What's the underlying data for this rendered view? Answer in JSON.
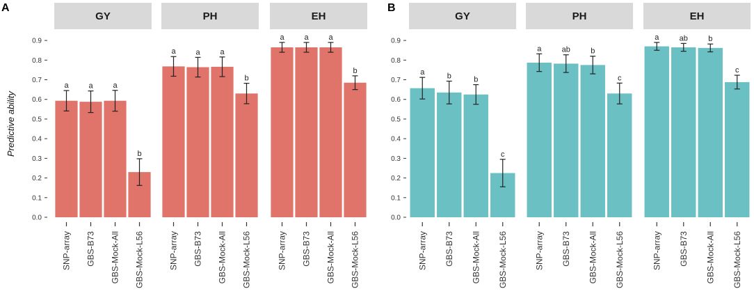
{
  "figure": {
    "ylabel": "Predictive ability"
  },
  "chart_data": [
    {
      "type": "bar",
      "panel": "A",
      "color": "#E0746A",
      "ylabel": "Predictive ability",
      "ylim": [
        0,
        0.95
      ],
      "yticks": [
        "0.0",
        "0.1",
        "0.2",
        "0.3",
        "0.4",
        "0.5",
        "0.6",
        "0.7",
        "0.8",
        "0.9"
      ],
      "categories": [
        "SNP-array",
        "GBS-B73",
        "GBS-Mock-All",
        "GBS-Mock-L56"
      ],
      "facets": [
        {
          "name": "GY",
          "values": [
            0.593,
            0.588,
            0.593,
            0.23
          ],
          "errors": [
            0.052,
            0.055,
            0.053,
            0.068
          ],
          "letters": [
            "a",
            "a",
            "a",
            "b"
          ]
        },
        {
          "name": "PH",
          "values": [
            0.768,
            0.764,
            0.766,
            0.63
          ],
          "errors": [
            0.05,
            0.05,
            0.05,
            0.052
          ],
          "letters": [
            "a",
            "a",
            "a",
            "b"
          ]
        },
        {
          "name": "EH",
          "values": [
            0.865,
            0.865,
            0.865,
            0.685
          ],
          "errors": [
            0.025,
            0.025,
            0.025,
            0.035
          ],
          "letters": [
            "a",
            "a",
            "a",
            "b"
          ]
        }
      ]
    },
    {
      "type": "bar",
      "panel": "B",
      "color": "#6BC0C4",
      "ylabel": "",
      "ylim": [
        0,
        0.95
      ],
      "yticks": [
        "0.0",
        "0.1",
        "0.2",
        "0.3",
        "0.4",
        "0.5",
        "0.6",
        "0.7",
        "0.8",
        "0.9"
      ],
      "categories": [
        "SNP-array",
        "GBS-B73",
        "GBS-Mock-All",
        "GBS-Mock-L56"
      ],
      "facets": [
        {
          "name": "GY",
          "values": [
            0.657,
            0.635,
            0.625,
            0.225
          ],
          "errors": [
            0.055,
            0.058,
            0.05,
            0.07
          ],
          "letters": [
            "a",
            "b",
            "b",
            "c"
          ]
        },
        {
          "name": "PH",
          "values": [
            0.787,
            0.782,
            0.775,
            0.63
          ],
          "errors": [
            0.045,
            0.045,
            0.045,
            0.053
          ],
          "letters": [
            "a",
            "ab",
            "b",
            "c"
          ]
        },
        {
          "name": "EH",
          "values": [
            0.87,
            0.865,
            0.862,
            0.688
          ],
          "errors": [
            0.02,
            0.02,
            0.02,
            0.035
          ],
          "letters": [
            "a",
            "ab",
            "b",
            "c"
          ]
        }
      ]
    }
  ]
}
